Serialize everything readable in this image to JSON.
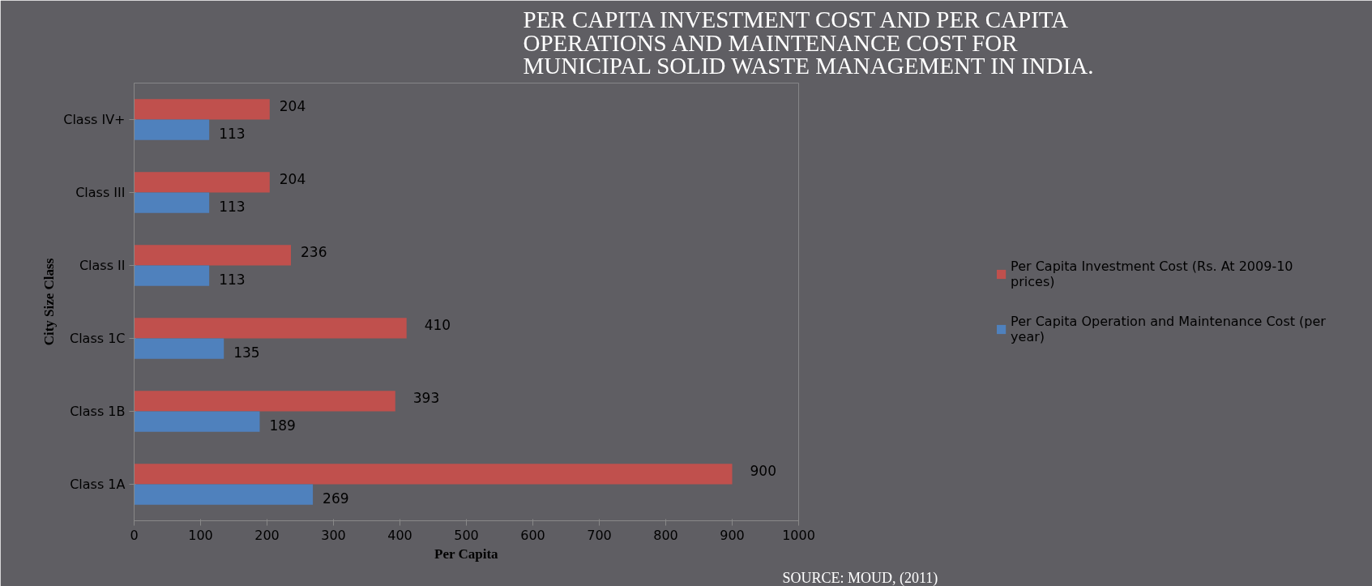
{
  "chart_data": {
    "type": "bar",
    "orientation": "horizontal",
    "title": "PER CAPITA INVESTMENT COST AND PER CAPITA OPERATIONS AND MAINTENANCE COST FOR MUNICIPAL SOLID WASTE MANAGEMENT IN INDIA.",
    "xlabel": "Per Capita",
    "ylabel": "City Size Class",
    "categories": [
      "Class IV+",
      "Class III",
      "Class II",
      "Class 1C",
      "Class 1B",
      "Class 1A"
    ],
    "series": [
      {
        "name": "Per Capita Investment Cost (Rs. At 2009-10 prices)",
        "color": "#c0504d",
        "values": [
          204,
          204,
          236,
          410,
          393,
          900
        ]
      },
      {
        "name": "Per Capita Operation and Maintenance Cost (per year)",
        "color": "#4f81bd",
        "values": [
          113,
          113,
          113,
          135,
          189,
          269
        ]
      }
    ],
    "xlim": [
      0,
      1000
    ],
    "xticks": [
      0,
      100,
      200,
      300,
      400,
      500,
      600,
      700,
      800,
      900,
      1000
    ],
    "data_labels": true,
    "grid": false,
    "legend": "right",
    "annotations": [
      "SOURCE: MOUD, (2011)"
    ]
  }
}
